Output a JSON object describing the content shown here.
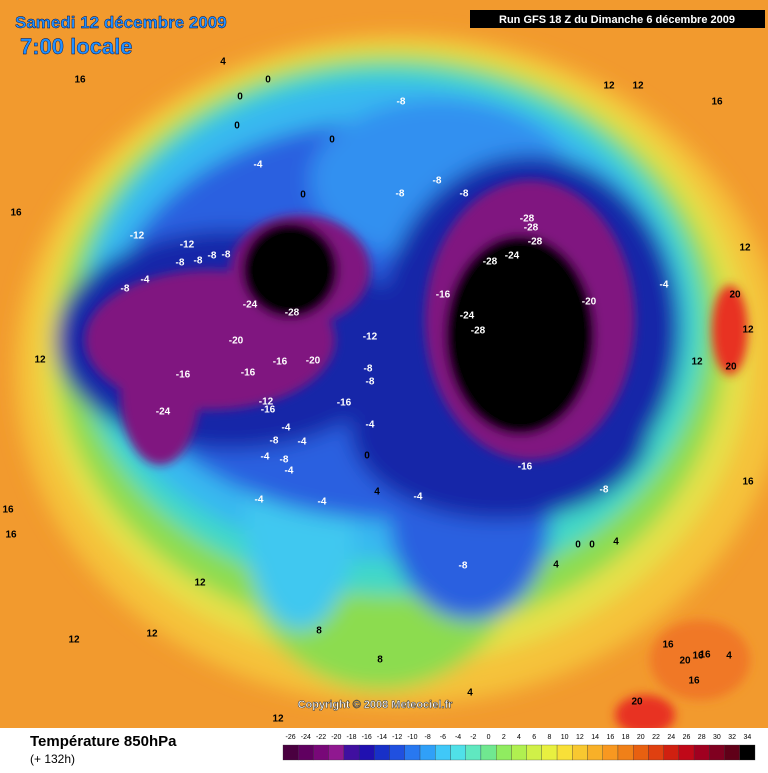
{
  "header": {
    "date": "Samedi 12 décembre 2009",
    "time": "7:00 locale",
    "run": "Run GFS 18 Z du Dimanche 6 décembre 2009"
  },
  "map": {
    "copyright": "Copyright © 2008 Meteociel.fr",
    "contour_labels": [
      16,
      4,
      0,
      0,
      0,
      0,
      -8,
      12,
      12,
      16,
      -4,
      0,
      -8,
      -8,
      -8,
      16,
      -12,
      -12,
      -8,
      -8,
      -8,
      -8,
      -4,
      -8,
      -28,
      -28,
      -28,
      -28,
      -24,
      12,
      -24,
      -28,
      -16,
      -20,
      -4,
      20,
      -20,
      -12,
      -24,
      -28,
      12,
      -16,
      -20,
      -8,
      -16,
      -16,
      -8,
      12,
      20,
      12,
      -24,
      -12,
      -16,
      -16,
      -4,
      -4,
      -8,
      -4,
      -4,
      -8,
      -4,
      0,
      -16,
      -4,
      -4,
      4,
      -4,
      -8,
      16,
      16,
      16,
      0,
      0,
      4,
      -8,
      4,
      12,
      12,
      12,
      8,
      8,
      16,
      16,
      20,
      16,
      16,
      4,
      4,
      20,
      12
    ]
  },
  "footer": {
    "variable": "Température 850hPa",
    "lead": "(+ 132h)",
    "scale": [
      -26,
      -24,
      -22,
      -20,
      -18,
      -16,
      -14,
      -12,
      -10,
      -8,
      -6,
      -4,
      -2,
      0,
      2,
      4,
      6,
      8,
      10,
      12,
      14,
      16,
      18,
      20,
      22,
      24,
      26,
      28,
      30,
      32,
      34
    ]
  }
}
